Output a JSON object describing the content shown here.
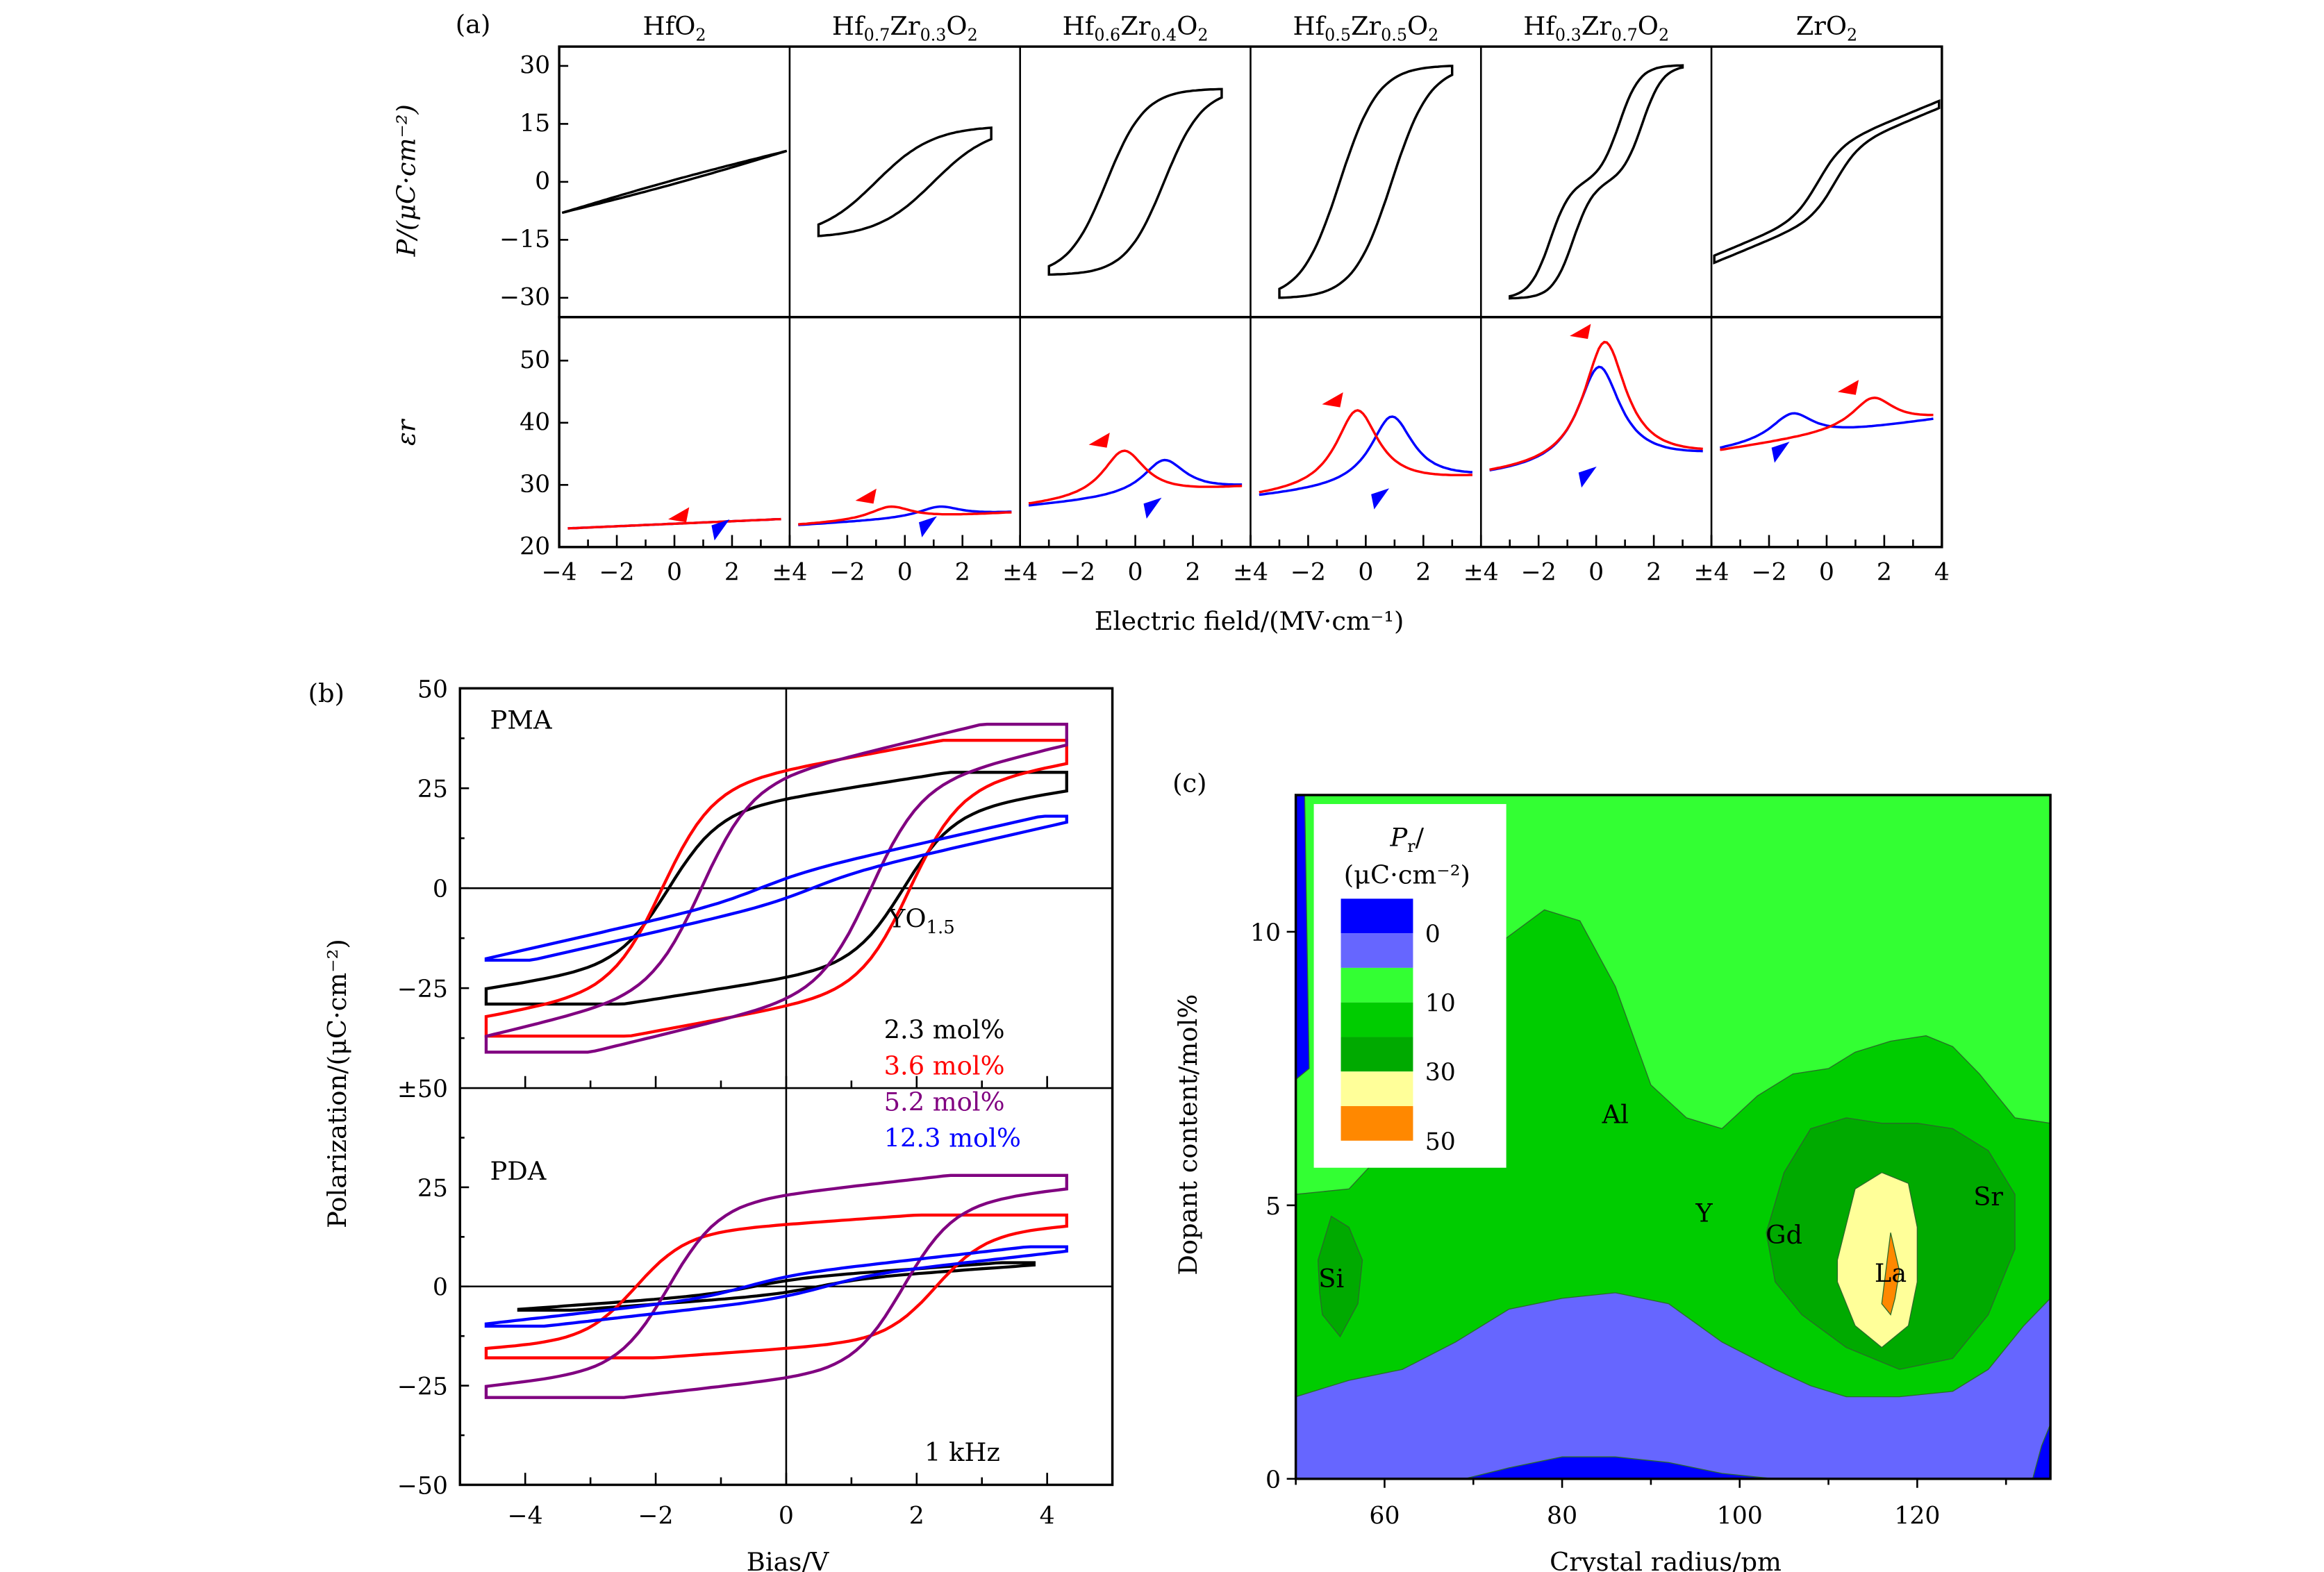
{
  "figure": {
    "panel_labels": [
      "(a)",
      "(b)",
      "(c)"
    ]
  },
  "chart_data": [
    {
      "id": "a-top",
      "type": "line",
      "panel": "(a)",
      "title": "",
      "subplots": [
        "HfO2",
        "Hf0.7Zr0.3O2",
        "Hf0.6Zr0.4O2",
        "Hf0.5Zr0.5O2",
        "Hf0.3Zr0.7O2",
        "ZrO2"
      ],
      "subplot_titles": [
        {
          "base": "HfO",
          "parts": [
            [
              "HfO",
              ""
            ],
            [
              "2",
              "sub"
            ]
          ]
        },
        {
          "parts": [
            [
              "Hf",
              ""
            ],
            [
              "0.7",
              "sub"
            ],
            [
              "Zr",
              ""
            ],
            [
              "0.3",
              "sub"
            ],
            [
              "O",
              ""
            ],
            [
              "2",
              "sub"
            ]
          ]
        },
        {
          "parts": [
            [
              "Hf",
              ""
            ],
            [
              "0.6",
              "sub"
            ],
            [
              "Zr",
              ""
            ],
            [
              "0.4",
              "sub"
            ],
            [
              "O",
              ""
            ],
            [
              "2",
              "sub"
            ]
          ]
        },
        {
          "parts": [
            [
              "Hf",
              ""
            ],
            [
              "0.5",
              "sub"
            ],
            [
              "Zr",
              ""
            ],
            [
              "0.5",
              "sub"
            ],
            [
              "O",
              ""
            ],
            [
              "2",
              "sub"
            ]
          ]
        },
        {
          "parts": [
            [
              "Hf",
              ""
            ],
            [
              "0.3",
              "sub"
            ],
            [
              "Zr",
              ""
            ],
            [
              "0.7",
              "sub"
            ],
            [
              "O",
              ""
            ],
            [
              "2",
              "sub"
            ]
          ]
        },
        {
          "parts": [
            [
              "ZrO",
              ""
            ],
            [
              "2",
              "sub"
            ]
          ]
        }
      ],
      "ylabel": "P/(μC·cm⁻²)",
      "ylim": [
        -35,
        35
      ],
      "yticks": [
        30,
        15,
        0,
        -15,
        -30
      ],
      "ytick_labels": [
        "30",
        "15",
        "0",
        "−15",
        "−30"
      ],
      "xlim": [
        -4,
        4
      ],
      "series": [
        {
          "name": "HfO2",
          "color": "#000000",
          "Pmax": 8,
          "Pr": 0.5,
          "Ec": 0.3,
          "shape": "linear"
        },
        {
          "name": "Hf0.7Zr0.3O2",
          "color": "#000000",
          "Pmax": 14,
          "Pr": 3,
          "Ec": 1.0,
          "shape": "slim"
        },
        {
          "name": "Hf0.6Zr0.4O2",
          "color": "#000000",
          "Pmax": 24,
          "Pr": 11,
          "Ec": 1.0,
          "shape": "ferro"
        },
        {
          "name": "Hf0.5Zr0.5O2",
          "color": "#000000",
          "Pmax": 30,
          "Pr": 14,
          "Ec": 0.9,
          "shape": "ferro"
        },
        {
          "name": "Hf0.3Zr0.7O2",
          "color": "#000000",
          "Pmax": 30,
          "Pr": 4,
          "Ec": 0.4,
          "shape": "pinched"
        },
        {
          "name": "ZrO2",
          "color": "#000000",
          "Pmax": 20,
          "Pr": 1,
          "Ec": 0.3,
          "shape": "antiferro"
        }
      ]
    },
    {
      "id": "a-bottom",
      "type": "line",
      "panel": "(a)",
      "ylabel": "εr",
      "ylim": [
        20,
        57
      ],
      "yticks": [
        50,
        40,
        30,
        20
      ],
      "ytick_labels": [
        "50",
        "40",
        "30",
        "20"
      ],
      "xlabel": "Electric field/(MV·cm⁻¹)",
      "xtick_labels": [
        "−4",
        "−2",
        "0",
        "2",
        "±4",
        "−2",
        "0",
        "2",
        "±4",
        "−2",
        "0",
        "2",
        "±4",
        "−2",
        "0",
        "2",
        "±4",
        "−2",
        "0",
        "2",
        "±4",
        "−2",
        "0",
        "2",
        "4"
      ],
      "sweep_colors": {
        "up": "#0000ff",
        "down": "#ff0000"
      },
      "series": [
        {
          "name": "HfO2",
          "base": 23,
          "end": 24.5,
          "peak_red": 23.5,
          "peak_red_x": 1,
          "peak_blue": 23.8,
          "peak_blue_x": 2
        },
        {
          "name": "Hf0.7Zr0.3O2",
          "base": 23.5,
          "end": 25.5,
          "peak_red": 26.5,
          "peak_red_x": -0.5,
          "peak_blue": 26.5,
          "peak_blue_x": 1.2
        },
        {
          "name": "Hf0.6Zr0.4O2",
          "base": 26.5,
          "end": 29.5,
          "peak_red": 35.5,
          "peak_red_x": -0.4,
          "peak_blue": 34,
          "peak_blue_x": 1.0
        },
        {
          "name": "Hf0.5Zr0.5O2",
          "base": 28,
          "end": 31,
          "peak_red": 42,
          "peak_red_x": -0.3,
          "peak_blue": 41,
          "peak_blue_x": 0.9
        },
        {
          "name": "Hf0.3Zr0.7O2",
          "base": 31.5,
          "end": 34.5,
          "peak_red": 53,
          "peak_red_x": 0.3,
          "peak_blue": 49,
          "peak_blue_x": 0.1
        },
        {
          "name": "ZrO2",
          "base": 35.5,
          "end": 40.5,
          "peak_red": 44,
          "peak_red_x": 1.6,
          "peak_blue": 41.5,
          "peak_blue_x": -1.2
        }
      ]
    },
    {
      "id": "b",
      "type": "line",
      "panel": "(b)",
      "ylabel": "Polarization/(μC·cm⁻²)",
      "xlabel": "Bias/V",
      "xlim": [
        -5,
        5
      ],
      "xticks": [
        -4,
        -2,
        0,
        2,
        4
      ],
      "xtick_labels": [
        "−4",
        "−2",
        "0",
        "2",
        "4"
      ],
      "ytick_labels_top": [
        "50",
        "25",
        "0",
        "−25",
        "±50"
      ],
      "ytick_labels_bottom": [
        "25",
        "0",
        "−25",
        "−50"
      ],
      "ylim": [
        -50,
        50
      ],
      "annotations": {
        "top": "PMA",
        "bottom": "PDA",
        "dopant": "YO",
        "dopant_sub": "1.5",
        "freq": "1 kHz"
      },
      "legend": [
        {
          "label": "2.3 mol%",
          "color": "#000000"
        },
        {
          "label": "3.6 mol%",
          "color": "#ff0000"
        },
        {
          "label": "5.2 mol%",
          "color": "#800080"
        },
        {
          "label": "12.3 mol%",
          "color": "#0000ff"
        }
      ],
      "series_PMA": [
        {
          "name": "2.3 mol%",
          "color": "#000000",
          "Vmax": 4.3,
          "Pmax": 29,
          "Pr": 18,
          "Vc": 1.8
        },
        {
          "name": "3.6 mol%",
          "color": "#ff0000",
          "Vmax": 4.3,
          "Pmax": 37,
          "Pr": 24,
          "Vc": 1.9
        },
        {
          "name": "5.2 mol%",
          "color": "#800080",
          "Vmax": 4.3,
          "Pmax": 41,
          "Pr": 24,
          "Vc": 1.3
        },
        {
          "name": "12.3 mol%",
          "color": "#0000ff",
          "Vmax": 4.3,
          "Pmax": 18,
          "Pr": 2,
          "Vc": 0.4
        }
      ],
      "series_PDA": [
        {
          "name": "2.3 mol%",
          "color": "#000000",
          "Vmax": 3.8,
          "Pmax": 6,
          "Pr": 1.5,
          "Vc": 0.5
        },
        {
          "name": "3.6 mol%",
          "color": "#ff0000",
          "Vmax": 4.3,
          "Pmax": 18,
          "Pr": 13,
          "Vc": 2.3
        },
        {
          "name": "5.2 mol%",
          "color": "#800080",
          "Vmax": 4.3,
          "Pmax": 28,
          "Pr": 20,
          "Vc": 1.8
        },
        {
          "name": "12.3 mol%",
          "color": "#0000ff",
          "Vmax": 4.3,
          "Pmax": 10,
          "Pr": 2,
          "Vc": 0.6
        }
      ]
    },
    {
      "id": "c",
      "type": "heatmap",
      "panel": "(c)",
      "xlabel": "Crystal radius/pm",
      "ylabel": "Dopant content/mol%",
      "xlim": [
        50,
        135
      ],
      "ylim": [
        0,
        12.5
      ],
      "xticks": [
        60,
        80,
        100,
        120
      ],
      "yticks": [
        0,
        5,
        10
      ],
      "colorbar_title": "Pr/",
      "colorbar_unit": "(μC·cm⁻²)",
      "colorbar": [
        {
          "level": "0",
          "color": "#0000ff"
        },
        {
          "level": "",
          "color": "#6666ff"
        },
        {
          "level": "10",
          "color": "#33ff33"
        },
        {
          "level": "",
          "color": "#00cc00"
        },
        {
          "level": "30",
          "color": "#00aa00"
        },
        {
          "level": "",
          "color": "#ffff99"
        },
        {
          "level": "50",
          "color": "#ff8800"
        }
      ],
      "colorbar_labels": [
        "0",
        "10",
        "30",
        "50"
      ],
      "element_labels": [
        {
          "text": "Si",
          "x": 54,
          "y": 3.5
        },
        {
          "text": "Al",
          "x": 86,
          "y": 6.5
        },
        {
          "text": "Y",
          "x": 96,
          "y": 4.7
        },
        {
          "text": "Gd",
          "x": 105,
          "y": 4.3
        },
        {
          "text": "La",
          "x": 117,
          "y": 3.6
        },
        {
          "text": "Sr",
          "x": 128,
          "y": 5.0
        }
      ]
    }
  ]
}
